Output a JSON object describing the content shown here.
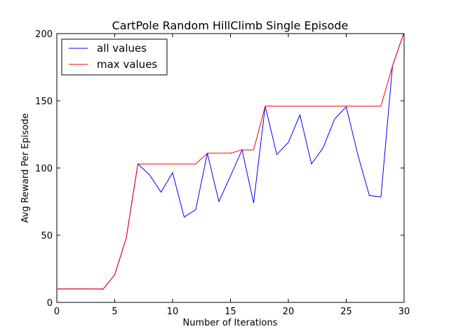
{
  "chart_data": {
    "type": "line",
    "title": "CartPole Random HillClimb Single Episode",
    "xlabel": "Number of Iterations",
    "ylabel": "Avg Reward Per Episode",
    "xlim": [
      0,
      30
    ],
    "ylim": [
      0,
      200
    ],
    "xticks": [
      0,
      5,
      10,
      15,
      20,
      25,
      30
    ],
    "yticks": [
      0,
      50,
      100,
      150,
      200
    ],
    "grid": false,
    "legend_position": "top-left",
    "x": [
      0,
      1,
      2,
      3,
      4,
      5,
      6,
      7,
      8,
      9,
      10,
      11,
      12,
      13,
      14,
      15,
      16,
      17,
      18,
      19,
      20,
      21,
      22,
      23,
      24,
      25,
      26,
      27,
      28,
      29,
      30
    ],
    "series": [
      {
        "name": "all values",
        "color": "#0000ff",
        "values": [
          10,
          10,
          10,
          10,
          9.8,
          20.5,
          48,
          103,
          95,
          82,
          96.5,
          63.5,
          69,
          111,
          75,
          94,
          113.5,
          74,
          146,
          110,
          119,
          139.5,
          103,
          115,
          136.5,
          145.5,
          110,
          79.5,
          78.5,
          176,
          201
        ]
      },
      {
        "name": "max values",
        "color": "#ff0000",
        "values": [
          10,
          10,
          10,
          10,
          10,
          20.5,
          48,
          103,
          103,
          103,
          103,
          103,
          103,
          111,
          111,
          111,
          113.5,
          113.5,
          146,
          146,
          146,
          146,
          146,
          146,
          146,
          146,
          146,
          146,
          146,
          176,
          201
        ]
      }
    ]
  }
}
